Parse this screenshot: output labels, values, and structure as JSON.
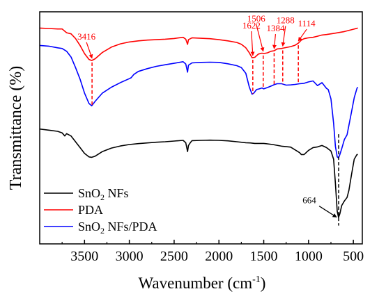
{
  "chart_data": {
    "type": "line",
    "xlabel": "Wavenumber (cm",
    "xlabel_sup": "-1",
    "xlabel_close": ")",
    "ylabel": "Transmittance (%)",
    "xlim": [
      4000,
      400
    ],
    "x_reversed": true,
    "ylim": [
      0,
      100
    ],
    "x_ticks": [
      3500,
      3000,
      2500,
      2000,
      1500,
      1000,
      500
    ],
    "x_tick_labels": [
      "3500",
      "3000",
      "2500",
      "2000",
      "1500",
      "1000",
      "500"
    ],
    "grid": false,
    "legend_position": "bottom-left",
    "series": [
      {
        "name": "SnO2 NFs",
        "legend_base": "SnO",
        "legend_sub": "2",
        "legend_rest": " NFs",
        "color": "#000000",
        "points": [
          [
            4000,
            49.5
          ],
          [
            3900,
            49.0
          ],
          [
            3800,
            48.5
          ],
          [
            3750,
            47.8
          ],
          [
            3720,
            46.5
          ],
          [
            3700,
            47.5
          ],
          [
            3650,
            46.5
          ],
          [
            3600,
            44.0
          ],
          [
            3550,
            41.5
          ],
          [
            3500,
            39.0
          ],
          [
            3450,
            37.5
          ],
          [
            3420,
            37.3
          ],
          [
            3380,
            37.8
          ],
          [
            3300,
            39.8
          ],
          [
            3200,
            41.3
          ],
          [
            3100,
            42.2
          ],
          [
            3000,
            42.8
          ],
          [
            2900,
            43.2
          ],
          [
            2800,
            43.5
          ],
          [
            2700,
            43.8
          ],
          [
            2600,
            44.0
          ],
          [
            2500,
            44.3
          ],
          [
            2400,
            44.6
          ],
          [
            2370,
            43.6
          ],
          [
            2350,
            39.8
          ],
          [
            2340,
            42.4
          ],
          [
            2320,
            43.6
          ],
          [
            2300,
            44.5
          ],
          [
            2200,
            44.6
          ],
          [
            2100,
            44.7
          ],
          [
            2000,
            44.6
          ],
          [
            1900,
            44.4
          ],
          [
            1800,
            44.0
          ],
          [
            1700,
            43.6
          ],
          [
            1650,
            43.5
          ],
          [
            1600,
            43.3
          ],
          [
            1500,
            43.3
          ],
          [
            1400,
            42.8
          ],
          [
            1300,
            42.1
          ],
          [
            1200,
            41.7
          ],
          [
            1100,
            39.3
          ],
          [
            1080,
            38.5
          ],
          [
            1050,
            38.5
          ],
          [
            1000,
            40.3
          ],
          [
            950,
            41.5
          ],
          [
            900,
            41.8
          ],
          [
            850,
            42.4
          ],
          [
            800,
            41.5
          ],
          [
            750,
            40.0
          ],
          [
            720,
            36.5
          ],
          [
            700,
            26.0
          ],
          [
            680,
            14.0
          ],
          [
            665,
            11.4
          ],
          [
            650,
            13.0
          ],
          [
            630,
            16.5
          ],
          [
            600,
            18.5
          ],
          [
            570,
            20.0
          ],
          [
            550,
            23.0
          ],
          [
            520,
            30.0
          ],
          [
            490,
            36.5
          ],
          [
            460,
            38.5
          ],
          [
            450,
            38.5
          ]
        ]
      },
      {
        "name": "PDA",
        "color": "#ff0000",
        "points": [
          [
            4000,
            93.0
          ],
          [
            3900,
            92.8
          ],
          [
            3800,
            92.6
          ],
          [
            3750,
            92.6
          ],
          [
            3700,
            91.0
          ],
          [
            3650,
            90.5
          ],
          [
            3600,
            88.5
          ],
          [
            3550,
            85.5
          ],
          [
            3500,
            82.0
          ],
          [
            3450,
            79.5
          ],
          [
            3420,
            79.0
          ],
          [
            3380,
            79.8
          ],
          [
            3300,
            82.5
          ],
          [
            3200,
            84.8
          ],
          [
            3100,
            86.2
          ],
          [
            3000,
            87.0
          ],
          [
            2900,
            87.5
          ],
          [
            2800,
            87.8
          ],
          [
            2700,
            88.0
          ],
          [
            2600,
            88.2
          ],
          [
            2500,
            88.5
          ],
          [
            2400,
            89.0
          ],
          [
            2370,
            88.2
          ],
          [
            2350,
            86.0
          ],
          [
            2340,
            88.0
          ],
          [
            2300,
            88.8
          ],
          [
            2200,
            88.6
          ],
          [
            2100,
            88.4
          ],
          [
            2000,
            88.0
          ],
          [
            1900,
            87.5
          ],
          [
            1800,
            86.8
          ],
          [
            1750,
            86.0
          ],
          [
            1700,
            84.5
          ],
          [
            1660,
            82.3
          ],
          [
            1630,
            80.2
          ],
          [
            1600,
            80.4
          ],
          [
            1560,
            81.8
          ],
          [
            1520,
            82.2
          ],
          [
            1500,
            82.0
          ],
          [
            1460,
            82.3
          ],
          [
            1420,
            83.0
          ],
          [
            1384,
            83.2
          ],
          [
            1350,
            84.0
          ],
          [
            1300,
            84.2
          ],
          [
            1288,
            84.3
          ],
          [
            1250,
            84.6
          ],
          [
            1200,
            85.0
          ],
          [
            1150,
            85.6
          ],
          [
            1114,
            86.5
          ],
          [
            1080,
            87.8
          ],
          [
            1050,
            88.4
          ],
          [
            1000,
            88.8
          ],
          [
            950,
            89.0
          ],
          [
            900,
            89.5
          ],
          [
            850,
            90.0
          ],
          [
            800,
            90.2
          ],
          [
            700,
            90.8
          ],
          [
            600,
            91.5
          ],
          [
            500,
            92.5
          ],
          [
            450,
            93.0
          ]
        ]
      },
      {
        "name": "SnO2 NFs/PDA",
        "legend_base": "SnO",
        "legend_sub": "2",
        "legend_rest": " NFs/PDA",
        "color": "#0000ff",
        "points": [
          [
            4000,
            85.5
          ],
          [
            3900,
            85.2
          ],
          [
            3800,
            84.5
          ],
          [
            3750,
            84.2
          ],
          [
            3700,
            83.0
          ],
          [
            3650,
            80.5
          ],
          [
            3600,
            76.0
          ],
          [
            3550,
            71.0
          ],
          [
            3500,
            65.0
          ],
          [
            3450,
            60.5
          ],
          [
            3420,
            59.5
          ],
          [
            3380,
            61.5
          ],
          [
            3300,
            65.0
          ],
          [
            3200,
            67.5
          ],
          [
            3100,
            69.5
          ],
          [
            3000,
            71.2
          ],
          [
            2980,
            71.6
          ],
          [
            2950,
            73.0
          ],
          [
            2900,
            74.3
          ],
          [
            2800,
            75.5
          ],
          [
            2700,
            76.5
          ],
          [
            2600,
            77.2
          ],
          [
            2500,
            77.8
          ],
          [
            2400,
            78.5
          ],
          [
            2370,
            77.5
          ],
          [
            2350,
            74.0
          ],
          [
            2340,
            77.0
          ],
          [
            2300,
            78.0
          ],
          [
            2200,
            78.2
          ],
          [
            2100,
            78.3
          ],
          [
            2000,
            78.2
          ],
          [
            1900,
            77.6
          ],
          [
            1800,
            76.8
          ],
          [
            1750,
            76.0
          ],
          [
            1700,
            73.5
          ],
          [
            1660,
            67.5
          ],
          [
            1630,
            64.5
          ],
          [
            1610,
            65.0
          ],
          [
            1580,
            66.5
          ],
          [
            1550,
            66.8
          ],
          [
            1520,
            67.2
          ],
          [
            1500,
            66.8
          ],
          [
            1450,
            67.5
          ],
          [
            1400,
            68.3
          ],
          [
            1384,
            68.6
          ],
          [
            1350,
            69.0
          ],
          [
            1300,
            69.0
          ],
          [
            1250,
            68.4
          ],
          [
            1200,
            68.5
          ],
          [
            1150,
            68.7
          ],
          [
            1100,
            69.0
          ],
          [
            1050,
            69.2
          ],
          [
            1000,
            69.8
          ],
          [
            950,
            70.2
          ],
          [
            900,
            68.2
          ],
          [
            850,
            69.5
          ],
          [
            800,
            67.0
          ],
          [
            780,
            66.5
          ],
          [
            750,
            62.5
          ],
          [
            720,
            52.0
          ],
          [
            700,
            42.0
          ],
          [
            680,
            37.5
          ],
          [
            665,
            37.0
          ],
          [
            650,
            38.5
          ],
          [
            630,
            41.0
          ],
          [
            600,
            45.0
          ],
          [
            570,
            47.0
          ],
          [
            550,
            51.0
          ],
          [
            520,
            57.0
          ],
          [
            490,
            63.0
          ],
          [
            460,
            67.0
          ],
          [
            450,
            67.5
          ]
        ]
      }
    ],
    "annotations": [
      {
        "label": "3416",
        "wavenumber": 3416,
        "series": "PDA",
        "color": "#ff0000",
        "arrow": "down",
        "dashed_to_series": "SnO2 NFs/PDA"
      },
      {
        "label": "1622",
        "wavenumber": 1622,
        "series": "PDA",
        "color": "#ff0000",
        "arrow": "down",
        "dashed_to_series": "SnO2 NFs/PDA"
      },
      {
        "label": "1506",
        "wavenumber": 1506,
        "series": "PDA",
        "color": "#ff0000",
        "arrow": "down",
        "dashed_to_series": "SnO2 NFs/PDA"
      },
      {
        "label": "1384",
        "wavenumber": 1384,
        "series": "PDA",
        "color": "#ff0000",
        "arrow": "down",
        "dashed_to_series": "SnO2 NFs/PDA"
      },
      {
        "label": "1288",
        "wavenumber": 1288,
        "series": "PDA",
        "color": "#ff0000",
        "arrow": "down",
        "dashed_to_series": "SnO2 NFs/PDA"
      },
      {
        "label": "1114",
        "wavenumber": 1114,
        "series": "PDA",
        "color": "#ff0000",
        "arrow": "down",
        "dashed_to_series": "SnO2 NFs/PDA"
      },
      {
        "label": "664",
        "wavenumber": 664,
        "series": "SnO2 NFs",
        "color": "#000000",
        "arrow": "to-minimum",
        "dashed_to_series": "SnO2 NFs/PDA"
      }
    ]
  }
}
